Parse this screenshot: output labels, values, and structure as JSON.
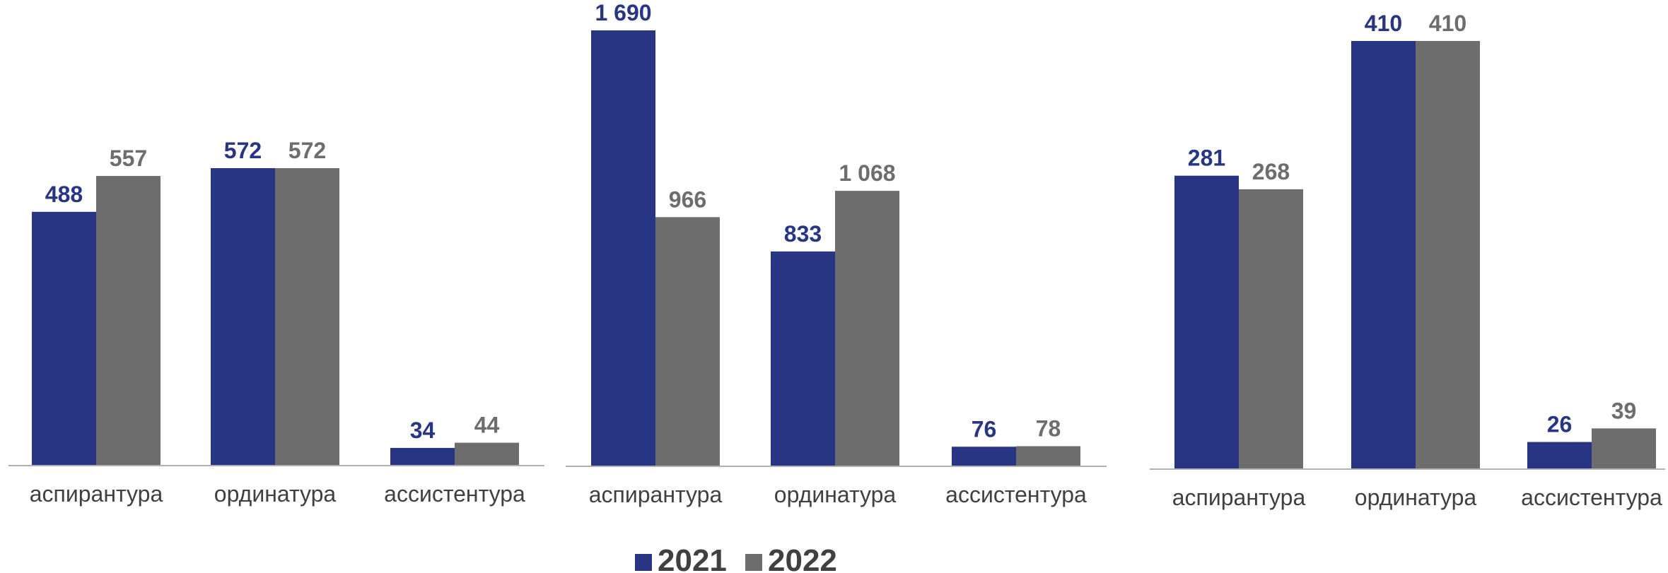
{
  "colors": {
    "y2021": "#283583",
    "y2022": "#6d6d6d",
    "axis": "#b0b0b0"
  },
  "legend": [
    "2021",
    "2022"
  ],
  "chart_data": [
    {
      "type": "bar",
      "categories": [
        "аспирантура",
        "ординатура",
        "ассистентура"
      ],
      "series": [
        {
          "name": "2021",
          "values": [
            488,
            572,
            34
          ],
          "labels": [
            "488",
            "572",
            "34"
          ]
        },
        {
          "name": "2022",
          "values": [
            557,
            572,
            44
          ],
          "labels": [
            "557",
            "572",
            "44"
          ]
        }
      ]
    },
    {
      "type": "bar",
      "categories": [
        "аспирантура",
        "ординатура",
        "ассистентура"
      ],
      "series": [
        {
          "name": "2021",
          "values": [
            1690,
            833,
            76
          ],
          "labels": [
            "1 690",
            "833",
            "76"
          ]
        },
        {
          "name": "2022",
          "values": [
            966,
            1068,
            78
          ],
          "labels": [
            "966",
            "1 068",
            "78"
          ]
        }
      ]
    },
    {
      "type": "bar",
      "categories": [
        "аспирантура",
        "ординатура",
        "ассистентура"
      ],
      "series": [
        {
          "name": "2021",
          "values": [
            281,
            410,
            26
          ],
          "labels": [
            "281",
            "410",
            "26"
          ]
        },
        {
          "name": "2022",
          "values": [
            268,
            410,
            39
          ],
          "labels": [
            "268",
            "410",
            "39"
          ]
        }
      ]
    }
  ]
}
